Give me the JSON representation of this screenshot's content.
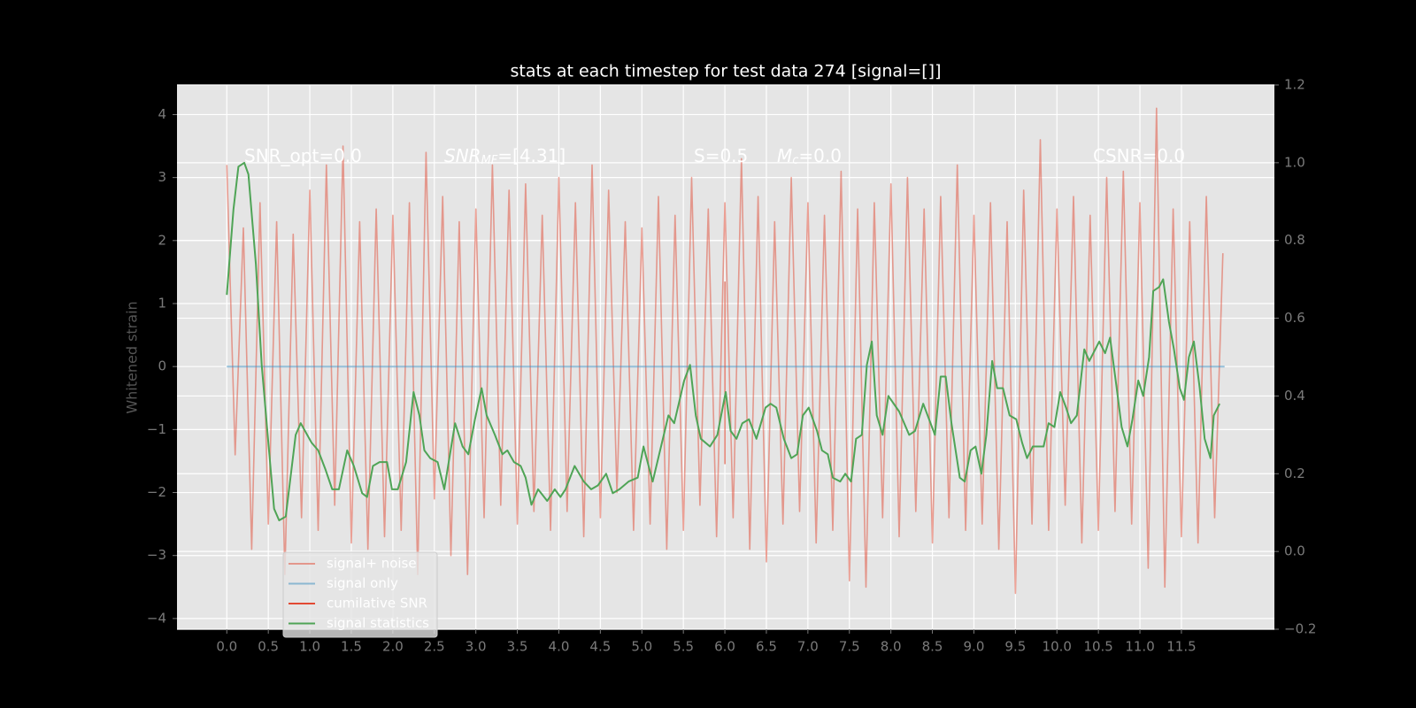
{
  "chart_data": {
    "type": "line",
    "title": "stats at each timestep for test data 274 [signal=[]]",
    "ylabel": "Whitened strain",
    "xlim": [
      -0.6,
      12.62
    ],
    "ylim": [
      -4.17,
      4.47
    ],
    "y2lim": [
      -0.2,
      1.2
    ],
    "xticks": [
      {
        "value": 0,
        "label": "0.0"
      },
      0.5,
      {
        "value": 1,
        "label": "1.0"
      },
      1.5,
      {
        "value": 2,
        "label": "2.0"
      },
      2.5,
      {
        "value": 3,
        "label": "3.0"
      },
      3.5,
      {
        "value": 4,
        "label": "4.0"
      },
      4.5,
      {
        "value": 5,
        "label": "5.0"
      },
      5.5,
      {
        "value": 6,
        "label": "6.0"
      },
      6.5,
      {
        "value": 7,
        "label": "7.0"
      },
      7.5,
      {
        "value": 8,
        "label": "8.0"
      },
      8.5,
      {
        "value": 9,
        "label": "9.0"
      },
      9.5,
      {
        "value": 10,
        "label": "10.0"
      },
      10.5,
      {
        "value": 11,
        "label": "11.0"
      },
      11.5
    ],
    "yticks": [
      {
        "value": -4,
        "label": "−4"
      },
      {
        "value": -3,
        "label": "−3"
      },
      {
        "value": -2,
        "label": "−2"
      },
      {
        "value": -1,
        "label": "−1"
      },
      0,
      1,
      2,
      3,
      4
    ],
    "y2ticks": [
      {
        "value": -0.2,
        "label": "−0.2"
      },
      {
        "value": 0,
        "label": "0.0"
      },
      0.2,
      0.4,
      0.6,
      0.8,
      {
        "value": 1,
        "label": "1.0"
      },
      1.2
    ],
    "grid": true,
    "legend": "lower left",
    "annotations": [
      {
        "text": "SNR_opt=0.0"
      },
      {
        "main": "SNR",
        "sub": "MF",
        "tail": "=[4.31]"
      },
      {
        "text": "S=0.5"
      },
      {
        "main": "M",
        "sub": "c",
        "tail": "=0.0"
      },
      {
        "text": "CSNR=0.0"
      }
    ],
    "series": [
      {
        "name": "signal+ noise",
        "color": "#e24a33",
        "alpha": 0.5,
        "axis": "y",
        "x": [
          0.0,
          0.1,
          0.2,
          0.3,
          0.4,
          0.5,
          0.6,
          0.7,
          0.8,
          0.9,
          1.0,
          1.1,
          1.2,
          1.3,
          1.4,
          1.5,
          1.6,
          1.7,
          1.8,
          1.9,
          2.0,
          2.1,
          2.2,
          2.3,
          2.4,
          2.5,
          2.6,
          2.7,
          2.8,
          2.9,
          3.0,
          3.1,
          3.2,
          3.3,
          3.4,
          3.5,
          3.6,
          3.7,
          3.8,
          3.9,
          4.0,
          4.1,
          4.2,
          4.3,
          4.4,
          4.5,
          4.6,
          4.7,
          4.8,
          4.9,
          5.0,
          5.1,
          5.2,
          5.3,
          5.4,
          5.5,
          5.6,
          5.7,
          5.8,
          5.9,
          6.0,
          6.1,
          6.2,
          6.3,
          6.4,
          6.5,
          6.6,
          6.7,
          6.8,
          6.9,
          7.0,
          7.1,
          7.2,
          7.3,
          7.4,
          7.5,
          7.6,
          7.7,
          7.8,
          7.9,
          8.0,
          8.1,
          8.2,
          8.3,
          8.4,
          8.5,
          8.6,
          8.7,
          8.8,
          8.9,
          9.0,
          9.1,
          9.2,
          9.3,
          9.4,
          9.5,
          9.6,
          9.7,
          9.8,
          9.9,
          10.0,
          10.1,
          10.2,
          10.3,
          10.4,
          10.5,
          10.6,
          10.7,
          10.8,
          10.9,
          11.0,
          11.1,
          11.2,
          11.3,
          11.4,
          11.5,
          11.6,
          11.7,
          11.8,
          11.9,
          12.0
        ],
        "values": [
          3.2,
          -1.4,
          2.2,
          -2.9,
          2.6,
          -2.5,
          2.3,
          -3.3,
          2.1,
          -2.4,
          2.8,
          -2.6,
          3.2,
          -2.2,
          3.5,
          -2.8,
          2.3,
          -2.9,
          2.5,
          -2.7,
          2.4,
          -2.6,
          2.6,
          -3.3,
          3.4,
          -2.1,
          2.7,
          -3.0,
          2.3,
          -3.3,
          2.5,
          -2.4,
          3.2,
          -2.2,
          2.8,
          -2.5,
          2.9,
          -2.3,
          2.4,
          -2.6,
          3.0,
          -2.3,
          2.6,
          -2.7,
          3.2,
          -2.4,
          2.8,
          -2.0,
          2.3,
          -2.6,
          2.2,
          -2.5,
          2.7,
          -2.9,
          2.4,
          -2.6,
          3.0,
          -2.2,
          2.5,
          -2.7,
          2.6,
          -2.4,
          3.3,
          -2.9,
          2.7,
          -3.1,
          2.3,
          -2.5,
          3.0,
          -2.3,
          2.6,
          -2.8,
          2.4,
          -2.6,
          3.1,
          -3.4,
          2.5,
          -3.5,
          2.6,
          -2.4,
          2.9,
          -2.7,
          3.0,
          -2.3,
          2.5,
          -2.8,
          2.7,
          -2.4,
          3.2,
          -2.6,
          2.4,
          -2.5,
          2.6,
          -2.9,
          2.3,
          -3.6,
          2.8,
          -2.5,
          3.6,
          -2.6,
          2.5,
          -2.2,
          2.7,
          -2.8,
          2.4,
          -2.6,
          3.0,
          -2.3,
          3.1,
          -2.5,
          2.6,
          -3.2,
          4.1,
          -3.5,
          2.5,
          -2.7,
          2.3,
          -2.8,
          2.7,
          -2.4,
          1.8
        ]
      },
      {
        "name": "signal only",
        "color": "#348abd",
        "alpha": 0.5,
        "axis": "y",
        "x": [
          0.0,
          12.02
        ],
        "values": [
          0,
          0
        ]
      },
      {
        "name": "cumilative SNR",
        "color": "#e24a33",
        "alpha": 1,
        "axis": "y",
        "x": [
          6.0,
          6.0
        ],
        "values": [
          1.35,
          -1.55
        ]
      },
      {
        "name": "signal statistics",
        "color": "#4fa456",
        "alpha": 1,
        "axis": "y2",
        "x": [
          0.0,
          0.08,
          0.14,
          0.21,
          0.26,
          0.35,
          0.42,
          0.5,
          0.57,
          0.63,
          0.71,
          0.83,
          0.89,
          1.02,
          1.1,
          1.19,
          1.27,
          1.35,
          1.45,
          1.53,
          1.63,
          1.69,
          1.76,
          1.84,
          1.93,
          1.99,
          2.06,
          2.16,
          2.25,
          2.32,
          2.38,
          2.45,
          2.54,
          2.62,
          2.75,
          2.84,
          2.91,
          2.99,
          3.07,
          3.13,
          3.23,
          3.32,
          3.38,
          3.46,
          3.54,
          3.6,
          3.67,
          3.75,
          3.86,
          3.95,
          4.02,
          4.08,
          4.19,
          4.3,
          4.39,
          4.47,
          4.57,
          4.65,
          4.73,
          4.84,
          4.95,
          5.02,
          5.13,
          5.32,
          5.39,
          5.51,
          5.58,
          5.65,
          5.71,
          5.82,
          5.91,
          6.01,
          6.07,
          6.14,
          6.21,
          6.29,
          6.38,
          6.49,
          6.55,
          6.62,
          6.71,
          6.8,
          6.87,
          6.94,
          7.01,
          7.11,
          7.17,
          7.24,
          7.3,
          7.39,
          7.45,
          7.52,
          7.58,
          7.65,
          7.71,
          7.77,
          7.83,
          7.9,
          7.97,
          8.1,
          8.22,
          8.29,
          8.39,
          8.53,
          8.6,
          8.66,
          8.73,
          8.83,
          8.89,
          8.96,
          9.02,
          9.09,
          9.15,
          9.22,
          9.28,
          9.35,
          9.43,
          9.51,
          9.58,
          9.64,
          9.71,
          9.84,
          9.9,
          9.97,
          10.04,
          10.11,
          10.17,
          10.24,
          10.33,
          10.39,
          10.51,
          10.58,
          10.64,
          10.72,
          10.78,
          10.85,
          10.91,
          10.98,
          11.04,
          11.11,
          11.16,
          11.23,
          11.28,
          11.35,
          11.41,
          11.48,
          11.53,
          11.59,
          11.65,
          11.72,
          11.78,
          11.85,
          11.89,
          11.96
        ],
        "values": [
          0.66,
          0.88,
          0.99,
          1.0,
          0.97,
          0.74,
          0.48,
          0.28,
          0.11,
          0.08,
          0.09,
          0.3,
          0.33,
          0.28,
          0.26,
          0.21,
          0.16,
          0.16,
          0.26,
          0.22,
          0.15,
          0.14,
          0.22,
          0.23,
          0.23,
          0.16,
          0.16,
          0.23,
          0.41,
          0.35,
          0.26,
          0.24,
          0.23,
          0.16,
          0.33,
          0.27,
          0.25,
          0.34,
          0.42,
          0.35,
          0.3,
          0.25,
          0.26,
          0.23,
          0.22,
          0.19,
          0.12,
          0.16,
          0.13,
          0.16,
          0.14,
          0.16,
          0.22,
          0.18,
          0.16,
          0.17,
          0.2,
          0.15,
          0.16,
          0.18,
          0.19,
          0.27,
          0.18,
          0.35,
          0.33,
          0.44,
          0.48,
          0.35,
          0.29,
          0.27,
          0.3,
          0.41,
          0.31,
          0.29,
          0.33,
          0.34,
          0.29,
          0.37,
          0.38,
          0.37,
          0.29,
          0.24,
          0.25,
          0.35,
          0.37,
          0.31,
          0.26,
          0.25,
          0.19,
          0.18,
          0.2,
          0.18,
          0.29,
          0.3,
          0.48,
          0.54,
          0.35,
          0.3,
          0.4,
          0.36,
          0.3,
          0.31,
          0.38,
          0.3,
          0.45,
          0.45,
          0.33,
          0.19,
          0.18,
          0.26,
          0.27,
          0.2,
          0.3,
          0.49,
          0.42,
          0.42,
          0.35,
          0.34,
          0.28,
          0.24,
          0.27,
          0.27,
          0.33,
          0.32,
          0.41,
          0.37,
          0.33,
          0.35,
          0.52,
          0.49,
          0.54,
          0.51,
          0.55,
          0.42,
          0.32,
          0.27,
          0.34,
          0.44,
          0.4,
          0.5,
          0.67,
          0.68,
          0.7,
          0.59,
          0.52,
          0.42,
          0.39,
          0.5,
          0.54,
          0.42,
          0.29,
          0.24,
          0.35,
          0.38
        ]
      }
    ]
  }
}
